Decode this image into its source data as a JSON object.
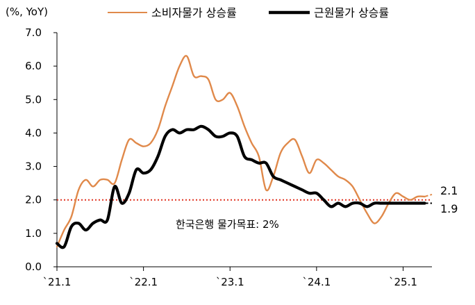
{
  "chart_data": {
    "type": "line",
    "unit_label": "(%, YoY)",
    "y_ticks": [
      "0.0",
      "1.0",
      "2.0",
      "3.0",
      "4.0",
      "5.0",
      "6.0",
      "7.0"
    ],
    "ylim": [
      0,
      7
    ],
    "x_ticks": [
      "`21.1",
      "`22.1",
      "`23.1",
      "`24.1",
      "`25.1"
    ],
    "x_tick_index": [
      0,
      12,
      24,
      36,
      48
    ],
    "xlim": [
      0,
      52
    ],
    "grid": false,
    "legend_position": "top",
    "target_line": {
      "value": 2.0,
      "label": "한국은행 물가목표: 2%",
      "color": "#e0301e"
    },
    "series": [
      {
        "name": "소비자물가 상승률",
        "color": "#e0894a",
        "x": [
          0,
          1,
          2,
          3,
          4,
          5,
          6,
          7,
          8,
          9,
          10,
          11,
          12,
          13,
          14,
          15,
          16,
          17,
          18,
          19,
          20,
          21,
          22,
          23,
          24,
          25,
          26,
          27,
          28,
          29,
          30,
          31,
          32,
          33,
          34,
          35,
          36,
          37,
          38,
          39,
          40,
          41,
          42,
          43,
          44,
          45,
          46,
          47,
          48,
          49,
          50,
          51
        ],
        "values": [
          0.6,
          1.1,
          1.5,
          2.3,
          2.6,
          2.4,
          2.6,
          2.6,
          2.5,
          3.2,
          3.8,
          3.7,
          3.6,
          3.7,
          4.1,
          4.8,
          5.4,
          6.0,
          6.3,
          5.7,
          5.7,
          5.6,
          5.0,
          5.0,
          5.2,
          4.8,
          4.2,
          3.7,
          3.3,
          2.3,
          2.7,
          3.4,
          3.7,
          3.8,
          3.3,
          2.8,
          3.2,
          3.1,
          2.9,
          2.7,
          2.6,
          2.4,
          2.0,
          1.6,
          1.3,
          1.5,
          1.9,
          2.2,
          2.1,
          2.0,
          2.1,
          2.1
        ]
      },
      {
        "name": "근원물가 상승률",
        "color": "#000000",
        "x": [
          0,
          1,
          2,
          3,
          4,
          5,
          6,
          7,
          8,
          9,
          10,
          11,
          12,
          13,
          14,
          15,
          16,
          17,
          18,
          19,
          20,
          21,
          22,
          23,
          24,
          25,
          26,
          27,
          28,
          29,
          30,
          31,
          32,
          33,
          34,
          35,
          36,
          37,
          38,
          39,
          40,
          41,
          42,
          43,
          44,
          45,
          46,
          47,
          48,
          49,
          50,
          51
        ],
        "values": [
          0.7,
          0.6,
          1.2,
          1.3,
          1.1,
          1.3,
          1.4,
          1.4,
          2.4,
          1.9,
          2.2,
          2.9,
          2.8,
          2.9,
          3.3,
          3.9,
          4.1,
          4.0,
          4.1,
          4.1,
          4.2,
          4.1,
          3.9,
          3.9,
          4.0,
          3.9,
          3.3,
          3.2,
          3.1,
          3.1,
          2.7,
          2.6,
          2.5,
          2.4,
          2.3,
          2.2,
          2.2,
          2.0,
          1.8,
          1.9,
          1.8,
          1.9,
          1.9,
          1.8,
          1.9,
          1.9,
          1.9,
          1.9,
          1.9,
          1.9,
          1.9,
          1.9
        ]
      }
    ],
    "end_labels": [
      "2.1",
      "1.9"
    ]
  }
}
